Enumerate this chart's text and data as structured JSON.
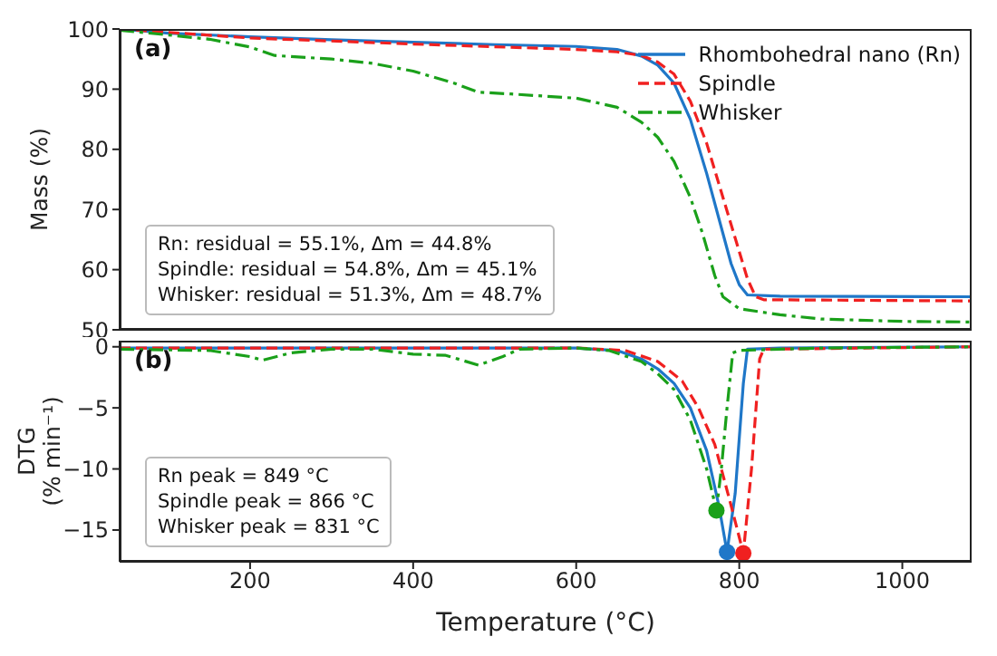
{
  "chart_data": [
    {
      "type": "line",
      "ylabel": "Mass (%)",
      "xlim": [
        40,
        1085
      ],
      "xticks": [
        200,
        400,
        600,
        800,
        1000
      ],
      "ylim": [
        50,
        100
      ],
      "yticks": [
        50,
        60,
        70,
        80,
        90,
        100
      ],
      "tick_labels": "y",
      "grid": false,
      "legend": "top right",
      "marker": "none",
      "annotations": [
        "(a)",
        "Rn: residual = 55.1%, Δm = 44.8%",
        "Spindle: residual = 54.8%, Δm = 45.1%",
        "Whisker: residual = 51.3%, Δm = 48.7%"
      ],
      "series": [
        {
          "name": "Rhombohedral nano (Rn)",
          "color": "#1f77c8",
          "line_style": "solid",
          "x": [
            40,
            100,
            200,
            300,
            400,
            500,
            600,
            650,
            680,
            700,
            720,
            740,
            760,
            780,
            790,
            800,
            810,
            850,
            1085
          ],
          "values": [
            100,
            99.3,
            98.7,
            98.2,
            97.8,
            97.4,
            97.1,
            96.6,
            95.5,
            94,
            91,
            85,
            76,
            66,
            61,
            57.5,
            55.8,
            55.6,
            55.5
          ]
        },
        {
          "name": "Spindle",
          "color": "#f02020",
          "line_style": "dashed",
          "x": [
            40,
            200,
            400,
            600,
            650,
            680,
            700,
            720,
            740,
            760,
            780,
            800,
            810,
            820,
            830,
            1085
          ],
          "values": [
            100,
            98.5,
            97.5,
            96.6,
            96.2,
            95.6,
            94.5,
            92.5,
            88,
            81,
            72,
            63,
            58.5,
            55.5,
            55,
            54.8
          ]
        },
        {
          "name": "Whisker",
          "color": "#1aa01a",
          "line_style": "dashdot",
          "x": [
            40,
            100,
            150,
            200,
            230,
            300,
            350,
            400,
            450,
            480,
            520,
            600,
            650,
            680,
            700,
            720,
            740,
            755,
            770,
            780,
            800,
            850,
            900,
            1000,
            1085
          ],
          "values": [
            99.8,
            99,
            98.3,
            97,
            95.6,
            95,
            94.3,
            93,
            91,
            89.5,
            89.2,
            88.5,
            87,
            84.5,
            82,
            78,
            72,
            66,
            59,
            55.5,
            53.5,
            52.5,
            51.8,
            51.4,
            51.3
          ]
        }
      ]
    },
    {
      "type": "line",
      "xlabel": "Temperature (°C)",
      "ylabel": "DTG\n(% min⁻¹)",
      "xlim": [
        40,
        1085
      ],
      "xticks": [
        200,
        400,
        600,
        800,
        1000
      ],
      "ylim": [
        -17.6,
        0.5
      ],
      "yticks": [
        -15,
        -10,
        -5,
        0
      ],
      "grid": false,
      "legend": false,
      "marker": "none",
      "annotations": [
        "(b)",
        "Rn peak = 849 °C",
        "Spindle peak = 866 °C",
        "Whisker peak = 831 °C"
      ],
      "series": [
        {
          "color": "#1f77c8",
          "line_style": "solid",
          "x": [
            40,
            600,
            650,
            680,
            700,
            720,
            740,
            760,
            775,
            785,
            795,
            805,
            810,
            850,
            1085
          ],
          "values": [
            -0.1,
            -0.1,
            -0.3,
            -1,
            -1.8,
            -3,
            -5,
            -8.5,
            -13,
            -16.8,
            -12,
            -3,
            -0.2,
            -0.1,
            0
          ]
        },
        {
          "color": "#f02020",
          "line_style": "dashed",
          "x": [
            40,
            600,
            660,
            700,
            730,
            750,
            770,
            790,
            805,
            815,
            825,
            830,
            1085
          ],
          "values": [
            -0.1,
            -0.1,
            -0.3,
            -1.2,
            -2.8,
            -5,
            -8,
            -13,
            -16.9,
            -10,
            -1,
            -0.2,
            0
          ]
        },
        {
          "color": "#1aa01a",
          "line_style": "dashdot",
          "x": [
            40,
            150,
            200,
            215,
            250,
            300,
            350,
            400,
            440,
            480,
            510,
            530,
            600,
            640,
            680,
            700,
            720,
            740,
            760,
            772,
            778,
            785,
            792,
            800,
            850,
            900,
            1085
          ],
          "values": [
            -0.2,
            -0.3,
            -0.8,
            -1.1,
            -0.5,
            -0.2,
            -0.2,
            -0.6,
            -0.7,
            -1.5,
            -0.8,
            -0.2,
            -0.1,
            -0.3,
            -1.2,
            -2.2,
            -3.5,
            -6,
            -10,
            -13.4,
            -10,
            -5,
            -0.5,
            -0.3,
            -0.2,
            -0.1,
            0
          ]
        },
        {
          "type": "scatter",
          "marker": "circle",
          "color": "#1f77c8",
          "x": [
            785
          ],
          "values": [
            -16.8
          ]
        },
        {
          "type": "scatter",
          "marker": "circle",
          "color": "#f02020",
          "x": [
            805
          ],
          "values": [
            -16.9
          ]
        },
        {
          "type": "scatter",
          "marker": "circle",
          "color": "#1aa01a",
          "x": [
            772
          ],
          "values": [
            -13.4
          ]
        }
      ]
    }
  ]
}
